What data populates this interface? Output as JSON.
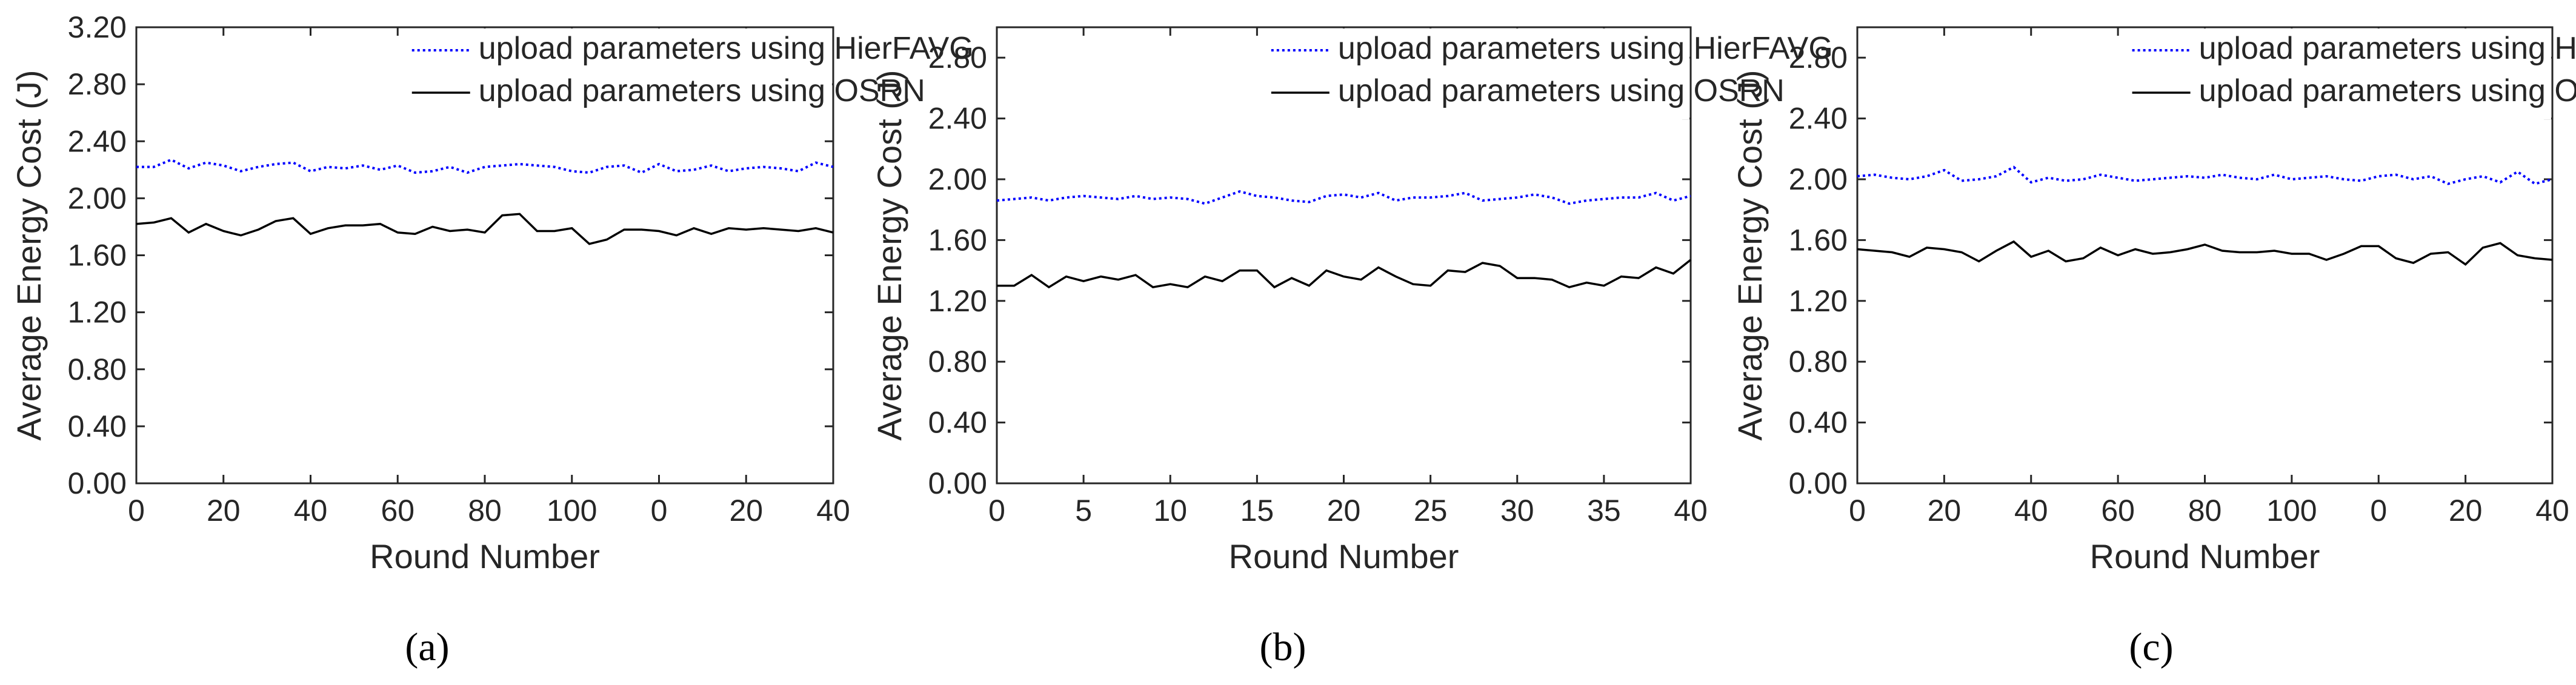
{
  "chart_data": [
    {
      "type": "line",
      "caption": "(a)",
      "xlabel": "Round Number",
      "ylabel": "Average Energy Cost (J)",
      "ylim": [
        0,
        3.2
      ],
      "yticks": [
        "0.00",
        "0.40",
        "0.80",
        "1.20",
        "1.60",
        "2.00",
        "2.40",
        "2.80",
        "3.20"
      ],
      "xticks": [
        "0",
        "20",
        "40",
        "60",
        "80",
        "100",
        "0",
        "20",
        "40"
      ],
      "legend_position": "top-right",
      "series": [
        {
          "name": "upload parameters using HierFAVG",
          "color": "#0000ff",
          "style": "dotted",
          "values": [
            2.22,
            2.22,
            2.27,
            2.21,
            2.25,
            2.23,
            2.19,
            2.22,
            2.24,
            2.25,
            2.19,
            2.22,
            2.21,
            2.23,
            2.2,
            2.23,
            2.18,
            2.19,
            2.22,
            2.18,
            2.22,
            2.23,
            2.24,
            2.23,
            2.22,
            2.19,
            2.18,
            2.22,
            2.23,
            2.18,
            2.24,
            2.19,
            2.2,
            2.23,
            2.19,
            2.21,
            2.22,
            2.21,
            2.19,
            2.25,
            2.22
          ]
        },
        {
          "name": "upload parameters using OSRN",
          "color": "#000000",
          "style": "solid",
          "values": [
            1.82,
            1.83,
            1.86,
            1.76,
            1.82,
            1.77,
            1.74,
            1.78,
            1.84,
            1.86,
            1.75,
            1.79,
            1.81,
            1.81,
            1.82,
            1.76,
            1.75,
            1.8,
            1.77,
            1.78,
            1.76,
            1.88,
            1.89,
            1.77,
            1.77,
            1.79,
            1.68,
            1.71,
            1.78,
            1.78,
            1.77,
            1.74,
            1.79,
            1.75,
            1.79,
            1.78,
            1.79,
            1.78,
            1.77,
            1.79,
            1.76
          ]
        }
      ]
    },
    {
      "type": "line",
      "caption": "(b)",
      "xlabel": "Round Number",
      "ylabel": "Average Energy Cost (J)",
      "ylim": [
        0,
        3.0
      ],
      "yticks": [
        "0.00",
        "0.40",
        "0.80",
        "1.20",
        "1.60",
        "2.00",
        "2.40",
        "2.80"
      ],
      "xticks": [
        "0",
        "5",
        "10",
        "15",
        "20",
        "25",
        "30",
        "35",
        "40"
      ],
      "legend_position": "top-right",
      "series": [
        {
          "name": "upload parameters using HierFAVG",
          "color": "#0000ff",
          "style": "dotted",
          "values": [
            1.86,
            1.87,
            1.88,
            1.86,
            1.88,
            1.89,
            1.88,
            1.87,
            1.89,
            1.87,
            1.88,
            1.87,
            1.84,
            1.88,
            1.92,
            1.89,
            1.88,
            1.86,
            1.85,
            1.89,
            1.9,
            1.88,
            1.91,
            1.86,
            1.88,
            1.88,
            1.89,
            1.91,
            1.86,
            1.87,
            1.88,
            1.9,
            1.88,
            1.84,
            1.86,
            1.87,
            1.88,
            1.88,
            1.91,
            1.86,
            1.89
          ]
        },
        {
          "name": "upload parameters using OSRN",
          "color": "#000000",
          "style": "solid",
          "values": [
            1.3,
            1.3,
            1.37,
            1.29,
            1.36,
            1.33,
            1.36,
            1.34,
            1.37,
            1.29,
            1.31,
            1.29,
            1.36,
            1.33,
            1.4,
            1.4,
            1.29,
            1.35,
            1.3,
            1.4,
            1.36,
            1.34,
            1.42,
            1.36,
            1.31,
            1.3,
            1.4,
            1.39,
            1.45,
            1.43,
            1.35,
            1.35,
            1.34,
            1.29,
            1.32,
            1.3,
            1.36,
            1.35,
            1.42,
            1.38,
            1.47
          ]
        }
      ]
    },
    {
      "type": "line",
      "caption": "(c)",
      "xlabel": "Round Number",
      "ylabel": "Average Energy Cost (J)",
      "ylim": [
        0,
        3.0
      ],
      "yticks": [
        "0.00",
        "0.40",
        "0.80",
        "1.20",
        "1.60",
        "2.00",
        "2.40",
        "2.80"
      ],
      "xticks": [
        "0",
        "20",
        "40",
        "60",
        "80",
        "100",
        "0",
        "20",
        "40"
      ],
      "legend_position": "top-right",
      "series": [
        {
          "name": "upload parameters using HierFAVG",
          "color": "#0000ff",
          "style": "dotted",
          "values": [
            2.02,
            2.03,
            2.01,
            2.0,
            2.02,
            2.06,
            1.99,
            2.0,
            2.02,
            2.08,
            1.98,
            2.01,
            1.99,
            2.0,
            2.03,
            2.01,
            1.99,
            2.0,
            2.01,
            2.02,
            2.01,
            2.03,
            2.01,
            2.0,
            2.03,
            2.0,
            2.01,
            2.02,
            2.0,
            1.99,
            2.02,
            2.03,
            2.0,
            2.02,
            1.97,
            2.0,
            2.02,
            1.98,
            2.05,
            1.97,
            2.0
          ]
        },
        {
          "name": "upload parameters using OSRN",
          "color": "#000000",
          "style": "solid",
          "values": [
            1.54,
            1.53,
            1.52,
            1.49,
            1.55,
            1.54,
            1.52,
            1.46,
            1.53,
            1.59,
            1.49,
            1.53,
            1.46,
            1.48,
            1.55,
            1.5,
            1.54,
            1.51,
            1.52,
            1.54,
            1.57,
            1.53,
            1.52,
            1.52,
            1.53,
            1.51,
            1.51,
            1.47,
            1.51,
            1.56,
            1.56,
            1.48,
            1.45,
            1.51,
            1.52,
            1.44,
            1.55,
            1.58,
            1.5,
            1.48,
            1.47
          ]
        }
      ]
    }
  ]
}
